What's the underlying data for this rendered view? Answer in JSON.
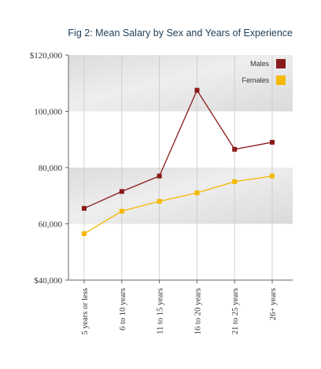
{
  "chart_data": {
    "type": "line",
    "title": "Fig 2: Mean Salary by Sex and Years of Experience",
    "xlabel": "",
    "ylabel": "",
    "categories": [
      "5 years or less",
      "6 to 10 years",
      "11 to 15 years",
      "16 to 20 years",
      "21 to 25 years",
      "26+ years"
    ],
    "y_ticks": [
      "$40,000",
      "60,000",
      "80,000",
      "100,000",
      "$120,000"
    ],
    "ylim": [
      40000,
      120000
    ],
    "grid": "alternating shaded horizontal bands; vertical lines at categories",
    "legend_position": "top-right",
    "series": [
      {
        "name": "Males",
        "color": "#8b1a1a",
        "values": [
          65500,
          71500,
          77000,
          107500,
          86500,
          89000
        ]
      },
      {
        "name": "Females",
        "color": "#f5b800",
        "values": [
          56500,
          64500,
          68000,
          71000,
          75000,
          77000
        ]
      }
    ]
  }
}
